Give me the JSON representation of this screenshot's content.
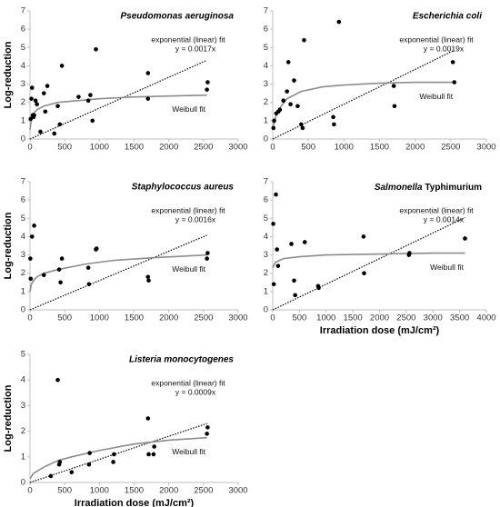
{
  "chart_data": [
    {
      "type": "scatter",
      "title": "Pseudomonas aeruginosa",
      "ylabel": "Log-reduction",
      "color": "#000000",
      "x": [
        10,
        20,
        30,
        40,
        50,
        60,
        80,
        100,
        150,
        200,
        220,
        250,
        350,
        400,
        430,
        460,
        700,
        840,
        870,
        900,
        950,
        1700,
        1700,
        2550,
        2560
      ],
      "values": [
        1.1,
        2.2,
        2.8,
        1.3,
        1.2,
        1.3,
        2.1,
        1.9,
        0.4,
        2.5,
        1.5,
        2.9,
        0.3,
        1.8,
        0.8,
        4.0,
        2.3,
        2.1,
        2.4,
        1.0,
        4.9,
        3.6,
        2.2,
        2.7,
        3.1
      ],
      "xlim": [
        0,
        3000
      ],
      "ylim": [
        0,
        7
      ],
      "xticks": [
        0,
        500,
        1000,
        1500,
        2000,
        2500,
        3000
      ],
      "yticks": [
        0,
        1,
        2,
        3,
        4,
        5,
        6,
        7
      ],
      "fits": [
        {
          "name": "exponential (linear) fit",
          "equation": "y = 0.0017x",
          "style": "dotted",
          "color": "#000000",
          "x": [
            0,
            2550
          ],
          "values": [
            0,
            4.3
          ]
        },
        {
          "name": "Weibull fit",
          "style": "solid",
          "color": "#8c8c8c",
          "x": [
            0,
            20,
            50,
            100,
            200,
            400,
            700,
            1000,
            1500,
            2000,
            2550
          ],
          "values": [
            0.5,
            1.1,
            1.4,
            1.6,
            1.8,
            2.0,
            2.1,
            2.2,
            2.3,
            2.35,
            2.4
          ]
        }
      ]
    },
    {
      "type": "scatter",
      "title": "Escherichia coli",
      "color": "#000000",
      "x": [
        10,
        20,
        50,
        80,
        100,
        150,
        200,
        220,
        250,
        300,
        350,
        400,
        420,
        440,
        850,
        860,
        930,
        1700,
        1710,
        2530,
        2550
      ],
      "values": [
        0.6,
        1.0,
        1.4,
        1.5,
        1.6,
        2.1,
        2.6,
        4.2,
        1.9,
        3.2,
        1.8,
        0.8,
        0.6,
        5.4,
        1.2,
        0.8,
        6.4,
        2.9,
        1.8,
        4.2,
        3.1
      ],
      "xlim": [
        0,
        3000
      ],
      "ylim": [
        0,
        7
      ],
      "xticks": [
        0,
        500,
        1000,
        1500,
        2000,
        2500,
        3000
      ],
      "yticks": [
        0,
        1,
        2,
        3,
        4,
        5,
        6,
        7
      ],
      "fits": [
        {
          "name": "exponential (linear) fit",
          "equation": "y = 0.0019x",
          "style": "dotted",
          "color": "#000000",
          "x": [
            0,
            2550
          ],
          "values": [
            0,
            4.85
          ]
        },
        {
          "name": "Weibull fit",
          "style": "solid",
          "color": "#8c8c8c",
          "x": [
            0,
            50,
            100,
            200,
            400,
            700,
            1000,
            1500,
            2000,
            2550
          ],
          "values": [
            0.6,
            1.3,
            1.7,
            2.2,
            2.6,
            2.85,
            2.95,
            3.05,
            3.1,
            3.1
          ]
        }
      ]
    },
    {
      "type": "scatter",
      "title": "Staphylococcus aureus",
      "ylabel": "Log-reduction",
      "color": "#000000",
      "x": [
        5,
        10,
        30,
        60,
        200,
        420,
        440,
        460,
        840,
        850,
        950,
        960,
        1700,
        1710,
        2550,
        2560
      ],
      "values": [
        2.8,
        1.7,
        4.0,
        4.6,
        1.9,
        2.2,
        1.5,
        2.8,
        2.3,
        1.4,
        3.3,
        3.35,
        1.8,
        1.6,
        2.8,
        3.1
      ],
      "xlim": [
        0,
        3000
      ],
      "ylim": [
        0,
        7
      ],
      "xticks": [
        0,
        500,
        1000,
        1500,
        2000,
        2500,
        3000
      ],
      "yticks": [
        0,
        1,
        2,
        3,
        4,
        5,
        6,
        7
      ],
      "fits": [
        {
          "name": "exponential (linear) fit",
          "equation": "y = 0.0016x",
          "style": "dotted",
          "color": "#000000",
          "x": [
            0,
            2550
          ],
          "values": [
            0,
            4.08
          ]
        },
        {
          "name": "Weibull fit",
          "style": "solid",
          "color": "#8c8c8c",
          "x": [
            0,
            20,
            50,
            100,
            200,
            400,
            800,
            1200,
            1800,
            2550
          ],
          "values": [
            1.0,
            1.4,
            1.6,
            1.8,
            2.0,
            2.2,
            2.5,
            2.7,
            2.85,
            3.0
          ]
        }
      ]
    },
    {
      "type": "scatter",
      "title_italic": "Salmonella",
      "title_plain": " Typhimurium",
      "xlabel": "Irradiation dose (mJ/cm²)",
      "color": "#000000",
      "x": [
        10,
        20,
        60,
        80,
        100,
        350,
        400,
        420,
        600,
        850,
        860,
        1700,
        1710,
        2550,
        2560,
        3600
      ],
      "values": [
        4.7,
        1.4,
        6.3,
        3.3,
        2.4,
        3.6,
        1.6,
        0.8,
        3.7,
        1.3,
        1.2,
        4.0,
        2.0,
        3.0,
        3.1,
        3.9
      ],
      "xlim": [
        0,
        4000
      ],
      "ylim": [
        0,
        7
      ],
      "xticks": [
        0,
        500,
        1000,
        1500,
        2000,
        2500,
        3000,
        3500,
        4000
      ],
      "yticks": [
        0,
        1,
        2,
        3,
        4,
        5,
        6,
        7
      ],
      "fits": [
        {
          "name": "exponential (linear) fit",
          "equation": "y = 0.0014x",
          "style": "dotted",
          "color": "#000000",
          "x": [
            0,
            3600
          ],
          "values": [
            0,
            5.04
          ]
        },
        {
          "name": "Weibull fit",
          "style": "solid",
          "color": "#8c8c8c",
          "x": [
            0,
            50,
            200,
            500,
            1000,
            2000,
            3000,
            3600
          ],
          "values": [
            2.3,
            2.6,
            2.8,
            2.9,
            3.0,
            3.05,
            3.1,
            3.1
          ]
        }
      ]
    },
    {
      "type": "scatter",
      "title": "Listeria monocytogenes",
      "ylabel": "Log-reduction",
      "xlabel": "Irradiation dose (mJ/cm²)",
      "color": "#000000",
      "x": [
        300,
        400,
        420,
        430,
        600,
        850,
        860,
        1200,
        1210,
        1700,
        1710,
        1780,
        1790,
        2550,
        2560
      ],
      "values": [
        0.25,
        4.0,
        0.7,
        0.8,
        0.4,
        0.7,
        1.15,
        0.8,
        1.1,
        2.5,
        1.1,
        1.1,
        1.4,
        1.9,
        2.15
      ],
      "xlim": [
        0,
        3000
      ],
      "ylim": [
        0,
        5
      ],
      "xticks": [
        0,
        500,
        1000,
        1500,
        2000,
        2500,
        3000
      ],
      "yticks": [
        0,
        1,
        2,
        3,
        4,
        5
      ],
      "fits": [
        {
          "name": "exponential (linear) fit",
          "equation": "y = 0.0009x",
          "style": "dotted",
          "color": "#000000",
          "x": [
            0,
            2550
          ],
          "values": [
            0,
            2.3
          ]
        },
        {
          "name": "Weibull fit",
          "style": "solid",
          "color": "#8c8c8c",
          "x": [
            0,
            50,
            200,
            400,
            600,
            1000,
            1500,
            2000,
            2550
          ],
          "values": [
            0.15,
            0.35,
            0.6,
            0.85,
            1.0,
            1.25,
            1.5,
            1.65,
            1.75
          ]
        }
      ]
    }
  ]
}
